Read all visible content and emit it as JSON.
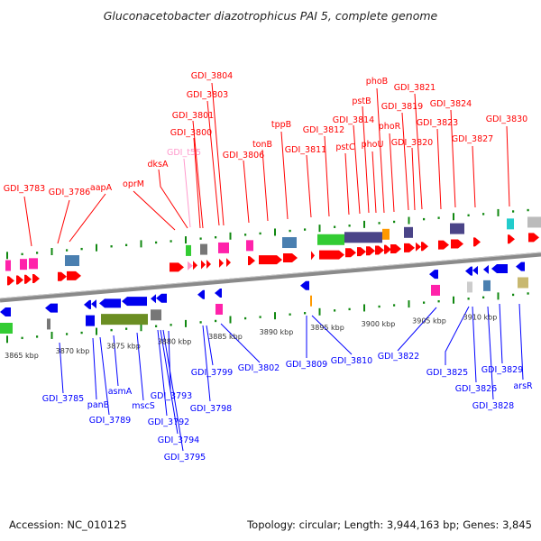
{
  "title": "Gluconacetobacter diazotrophicus PAI 5, complete genome",
  "footer": {
    "accession": "Accession: NC_010125",
    "summary": "Topology: circular; Length: 3,944,163 bp; Genes: 3,845"
  },
  "colors": {
    "forward_label": "#ff0000",
    "reverse_label": "#0000ff",
    "trna_label": "#ff99cc",
    "backbone": "#888888",
    "ticks": "#008800"
  },
  "ruler_labels": [
    "3865 kbp",
    "3870 kbp",
    "3875 kbp",
    "3880 kbp",
    "3885 kbp",
    "3890 kbp",
    "3895 kbp",
    "3900 kbp",
    "3905 kbp",
    "3910 kbp"
  ],
  "forward_labels": [
    "GDI_3783",
    "GDI_3786",
    "aapA",
    "oprM",
    "dksA",
    "GDI_t55",
    "GDI_3800",
    "GDI_3801",
    "GDI_3803",
    "GDI_3804",
    "GDI_3806",
    "tonB",
    "tppB",
    "GDI_3811",
    "GDI_3812",
    "pstC",
    "GDI_3814",
    "pstB",
    "phoU",
    "phoB",
    "phoR",
    "GDI_3819",
    "GDI_3820",
    "GDI_3821",
    "GDI_3823",
    "GDI_3824",
    "GDI_3827",
    "GDI_3830"
  ],
  "reverse_labels": [
    "GDI_3785",
    "panB",
    "GDI_3789",
    "asmA",
    "mscS",
    "GDI_3793",
    "GDI_3792",
    "GDI_3794",
    "GDI_3795",
    "GDI_3799",
    "GDI_3798",
    "GDI_3802",
    "GDI_3809",
    "GDI_3810",
    "GDI_3822",
    "GDI_3825",
    "GDI_3826",
    "GDI_3828",
    "GDI_3829",
    "arsR"
  ]
}
